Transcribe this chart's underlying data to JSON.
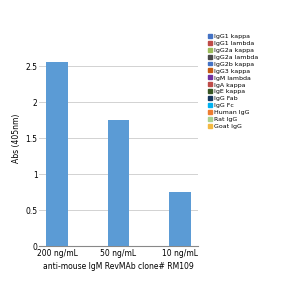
{
  "groups": [
    "200 ng/mL",
    "50 ng/mL",
    "10 ng/mL"
  ],
  "bar_values": [
    2.55,
    1.75,
    0.75
  ],
  "bar_color": "#5B9BD5",
  "xlabel": "anti-mouse IgM RevMAb clone# RM109",
  "ylabel": "Abs (405nm)",
  "ylim": [
    0,
    3.0
  ],
  "yticks": [
    0,
    0.5,
    1.0,
    1.5,
    2.0,
    2.5
  ],
  "legend_entries": [
    {
      "label": "IgG1 kappa",
      "color": "#4472C4"
    },
    {
      "label": "IgG1 lambda",
      "color": "#BE4B48"
    },
    {
      "label": "IgG2a kappa",
      "color": "#9BBB59"
    },
    {
      "label": "IgG2a lambda",
      "color": "#4A4A4A"
    },
    {
      "label": "IgG2b kappa",
      "color": "#4472C4"
    },
    {
      "label": "IgG3 kappa",
      "color": "#C55A11"
    },
    {
      "label": "IgM lambda",
      "color": "#7030A0"
    },
    {
      "label": "IgA kappa",
      "color": "#BE4B48"
    },
    {
      "label": "IgE kappa",
      "color": "#375623"
    },
    {
      "label": "IgG Fab",
      "color": "#17375E"
    },
    {
      "label": "IgG Fc",
      "color": "#00B0F0"
    },
    {
      "label": "Human IgG",
      "color": "#ED7D31"
    },
    {
      "label": "Rat IgG",
      "color": "#A9D18E"
    },
    {
      "label": "Goat IgG",
      "color": "#F4B942"
    }
  ],
  "bar_width": 0.35,
  "background_color": "#FFFFFF",
  "grid_color": "#C0C0C0",
  "xlabel_fontsize": 5.5,
  "ylabel_fontsize": 5.5,
  "tick_fontsize": 5.5,
  "legend_fontsize": 4.5
}
